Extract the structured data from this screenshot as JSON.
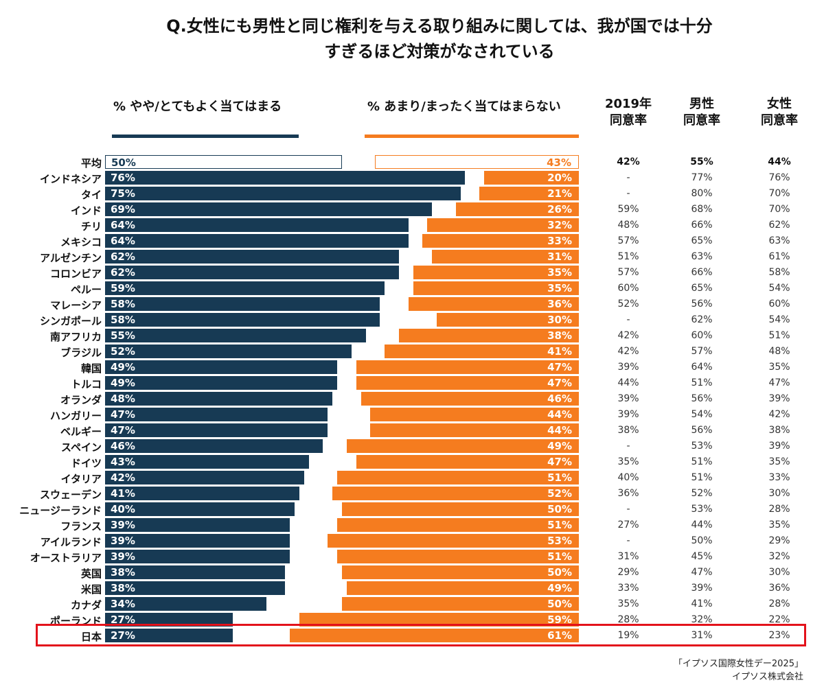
{
  "title_line1": "Q.女性にも男性と同じ権利を与える取り組みに関しては、我が国では十分",
  "title_line2": "すぎるほど対策がなされている",
  "footer_line1": "「イプソス国際女性デー2025」",
  "footer_line2": "イプソス株式会社",
  "colors": {
    "agree": "#173a54",
    "disagree": "#f57c1f",
    "highlight": "#e3121b"
  },
  "chart_data": {
    "type": "bar",
    "orientation": "horizontal-diverging",
    "series": [
      {
        "name": "% やや/とてもよく当てはまる",
        "values": [
          50,
          76,
          75,
          69,
          64,
          64,
          62,
          62,
          59,
          58,
          58,
          55,
          52,
          49,
          49,
          48,
          47,
          47,
          46,
          43,
          42,
          41,
          40,
          39,
          39,
          39,
          38,
          38,
          34,
          27,
          27
        ]
      },
      {
        "name": "% あまり/まったく当てはまらない",
        "values": [
          43,
          20,
          21,
          26,
          32,
          33,
          31,
          35,
          35,
          36,
          30,
          38,
          41,
          47,
          47,
          46,
          44,
          44,
          49,
          47,
          51,
          52,
          50,
          51,
          53,
          51,
          50,
          49,
          50,
          59,
          61
        ]
      }
    ],
    "categories": [
      "平均",
      "インドネシア",
      "タイ",
      "インド",
      "チリ",
      "メキシコ",
      "アルゼンチン",
      "コロンビア",
      "ペルー",
      "マレーシア",
      "シンガポール",
      "南アフリカ",
      "ブラジル",
      "韓国",
      "トルコ",
      "オランダ",
      "ハンガリー",
      "ベルギー",
      "スペイン",
      "ドイツ",
      "イタリア",
      "スウェーデン",
      "ニュージーランド",
      "フランス",
      "アイルランド",
      "オーストラリア",
      "英国",
      "米国",
      "カナダ",
      "ポーランド",
      "日本"
    ],
    "highlighted_category": "日本",
    "table": {
      "headers": [
        [
          "2019年",
          "同意率"
        ],
        [
          "男性",
          "同意率"
        ],
        [
          "女性",
          "同意率"
        ]
      ],
      "y2019": [
        "42%",
        "-",
        "-",
        "59%",
        "48%",
        "57%",
        "51%",
        "57%",
        "60%",
        "52%",
        "-",
        "42%",
        "42%",
        "39%",
        "44%",
        "39%",
        "39%",
        "38%",
        "-",
        "35%",
        "40%",
        "36%",
        "-",
        "27%",
        "-",
        "31%",
        "29%",
        "33%",
        "35%",
        "28%",
        "19%"
      ],
      "male": [
        "55%",
        "77%",
        "80%",
        "68%",
        "66%",
        "65%",
        "63%",
        "66%",
        "65%",
        "56%",
        "62%",
        "60%",
        "57%",
        "64%",
        "51%",
        "56%",
        "54%",
        "56%",
        "53%",
        "51%",
        "51%",
        "52%",
        "53%",
        "44%",
        "50%",
        "45%",
        "47%",
        "39%",
        "41%",
        "32%",
        "31%"
      ],
      "female": [
        "44%",
        "76%",
        "70%",
        "70%",
        "62%",
        "63%",
        "61%",
        "58%",
        "54%",
        "60%",
        "54%",
        "51%",
        "48%",
        "35%",
        "47%",
        "39%",
        "42%",
        "38%",
        "39%",
        "35%",
        "33%",
        "30%",
        "28%",
        "35%",
        "29%",
        "32%",
        "30%",
        "36%",
        "28%",
        "22%",
        "23%"
      ]
    }
  }
}
